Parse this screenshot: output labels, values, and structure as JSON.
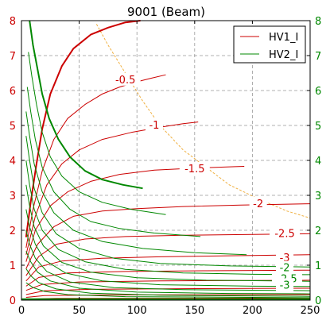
{
  "chart_data": {
    "type": "line",
    "title": "9001 (Beam)",
    "xlabel": "",
    "ylabel_left": "",
    "ylabel_right": "",
    "left_axis_color": "#cc0000",
    "right_axis_color": "#008800",
    "xlim": [
      0,
      250
    ],
    "ylim": [
      0,
      8
    ],
    "grid": true,
    "legend_position": "top-right",
    "xticks": [
      0,
      50,
      100,
      150,
      200,
      250
    ],
    "yticks": [
      0,
      1,
      2,
      3,
      4,
      5,
      6,
      7,
      8
    ],
    "legend": [
      {
        "label": "HV1_I",
        "color": "#cc0000"
      },
      {
        "label": "HV2_I",
        "color": "#008800"
      }
    ],
    "threshold_curve": {
      "color": "#f0b040",
      "points": [
        [
          65,
          7.9
        ],
        [
          75,
          7.3
        ],
        [
          90,
          6.5
        ],
        [
          105,
          5.7
        ],
        [
          120,
          5.0
        ],
        [
          140,
          4.3
        ],
        [
          160,
          3.8
        ],
        [
          180,
          3.3
        ],
        [
          205,
          2.9
        ],
        [
          230,
          2.55
        ],
        [
          250,
          2.35
        ]
      ]
    },
    "series": [
      {
        "group": "HV1_I",
        "color": "#cc0000",
        "width": 2.0,
        "points": [
          [
            4,
            1.8
          ],
          [
            8,
            2.8
          ],
          [
            13,
            3.9
          ],
          [
            18,
            4.9
          ],
          [
            25,
            5.9
          ],
          [
            35,
            6.7
          ],
          [
            45,
            7.2
          ],
          [
            60,
            7.6
          ],
          [
            75,
            7.8
          ],
          [
            90,
            7.95
          ],
          [
            103,
            8.0
          ]
        ]
      },
      {
        "group": "HV1_I",
        "color": "#cc0000",
        "width": 1.0,
        "points": [
          [
            4,
            1.5
          ],
          [
            10,
            2.6
          ],
          [
            18,
            3.7
          ],
          [
            28,
            4.6
          ],
          [
            40,
            5.2
          ],
          [
            55,
            5.6
          ],
          [
            70,
            5.9
          ],
          [
            85,
            6.1
          ],
          [
            100,
            6.25
          ],
          [
            112,
            6.35
          ],
          [
            125,
            6.45
          ]
        ]
      },
      {
        "group": "HV1_I",
        "color": "#cc0000",
        "width": 1.0,
        "points": [
          [
            4,
            1.3
          ],
          [
            12,
            2.4
          ],
          [
            22,
            3.3
          ],
          [
            35,
            3.9
          ],
          [
            50,
            4.3
          ],
          [
            70,
            4.6
          ],
          [
            95,
            4.8
          ],
          [
            120,
            4.95
          ],
          [
            140,
            5.05
          ],
          [
            153,
            5.1
          ]
        ]
      },
      {
        "group": "HV1_I",
        "color": "#cc0000",
        "width": 1.0,
        "points": [
          [
            4,
            1.1
          ],
          [
            12,
            2.0
          ],
          [
            25,
            2.7
          ],
          [
            40,
            3.1
          ],
          [
            60,
            3.4
          ],
          [
            85,
            3.6
          ],
          [
            115,
            3.72
          ],
          [
            150,
            3.78
          ],
          [
            185,
            3.82
          ],
          [
            193,
            3.83
          ]
        ]
      },
      {
        "group": "HV1_I",
        "color": "#cc0000",
        "width": 1.0,
        "points": [
          [
            4,
            0.9
          ],
          [
            14,
            1.6
          ],
          [
            28,
            2.1
          ],
          [
            45,
            2.4
          ],
          [
            70,
            2.55
          ],
          [
            100,
            2.62
          ],
          [
            140,
            2.68
          ],
          [
            190,
            2.72
          ],
          [
            250,
            2.76
          ]
        ]
      },
      {
        "group": "HV1_I",
        "color": "#cc0000",
        "width": 1.0,
        "points": [
          [
            4,
            0.7
          ],
          [
            15,
            1.25
          ],
          [
            30,
            1.6
          ],
          [
            55,
            1.75
          ],
          [
            90,
            1.82
          ],
          [
            140,
            1.86
          ],
          [
            200,
            1.88
          ],
          [
            250,
            1.9
          ]
        ]
      },
      {
        "group": "HV1_I",
        "color": "#cc0000",
        "width": 1.0,
        "points": [
          [
            4,
            0.55
          ],
          [
            15,
            0.95
          ],
          [
            35,
            1.12
          ],
          [
            70,
            1.2
          ],
          [
            120,
            1.24
          ],
          [
            180,
            1.27
          ],
          [
            250,
            1.3
          ]
        ]
      },
      {
        "group": "HV1_I",
        "color": "#cc0000",
        "width": 1.0,
        "points": [
          [
            4,
            0.4
          ],
          [
            15,
            0.65
          ],
          [
            40,
            0.78
          ],
          [
            90,
            0.82
          ],
          [
            160,
            0.84
          ],
          [
            250,
            0.86
          ]
        ]
      },
      {
        "group": "HV1_I",
        "color": "#cc0000",
        "width": 1.0,
        "points": [
          [
            4,
            0.28
          ],
          [
            18,
            0.45
          ],
          [
            50,
            0.52
          ],
          [
            120,
            0.55
          ],
          [
            250,
            0.57
          ]
        ]
      },
      {
        "group": "HV1_I",
        "color": "#cc0000",
        "width": 1.0,
        "points": [
          [
            4,
            0.16
          ],
          [
            20,
            0.27
          ],
          [
            60,
            0.31
          ],
          [
            150,
            0.33
          ],
          [
            250,
            0.34
          ]
        ]
      },
      {
        "group": "HV1_I",
        "color": "#cc0000",
        "width": 1.0,
        "points": [
          [
            4,
            0.08
          ],
          [
            20,
            0.13
          ],
          [
            80,
            0.15
          ],
          [
            250,
            0.16
          ]
        ]
      },
      {
        "group": "HV1_I",
        "color": "#cc0000",
        "width": 1.0,
        "points": [
          [
            4,
            0.03
          ],
          [
            30,
            0.05
          ],
          [
            250,
            0.06
          ]
        ]
      },
      {
        "group": "HV2_I",
        "color": "#008800",
        "width": 2.0,
        "points": [
          [
            7,
            8.0
          ],
          [
            10,
            7.3
          ],
          [
            14,
            6.6
          ],
          [
            18,
            5.9
          ],
          [
            24,
            5.2
          ],
          [
            32,
            4.6
          ],
          [
            42,
            4.1
          ],
          [
            55,
            3.7
          ],
          [
            70,
            3.45
          ],
          [
            88,
            3.3
          ],
          [
            105,
            3.2
          ]
        ]
      },
      {
        "group": "HV2_I",
        "color": "#008800",
        "width": 1.0,
        "points": [
          [
            6,
            7.1
          ],
          [
            9,
            6.4
          ],
          [
            13,
            5.6
          ],
          [
            18,
            4.8
          ],
          [
            25,
            4.1
          ],
          [
            35,
            3.55
          ],
          [
            50,
            3.1
          ],
          [
            70,
            2.8
          ],
          [
            95,
            2.6
          ],
          [
            125,
            2.45
          ]
        ]
      },
      {
        "group": "HV2_I",
        "color": "#008800",
        "width": 1.0,
        "points": [
          [
            5,
            6.1
          ],
          [
            8,
            5.4
          ],
          [
            12,
            4.6
          ],
          [
            18,
            3.8
          ],
          [
            28,
            3.1
          ],
          [
            42,
            2.6
          ],
          [
            60,
            2.25
          ],
          [
            85,
            2.05
          ],
          [
            115,
            1.92
          ],
          [
            155,
            1.82
          ]
        ]
      },
      {
        "group": "HV2_I",
        "color": "#008800",
        "width": 1.0,
        "points": [
          [
            4,
            5.4
          ],
          [
            7,
            4.7
          ],
          [
            11,
            3.9
          ],
          [
            18,
            3.1
          ],
          [
            28,
            2.5
          ],
          [
            45,
            2.0
          ],
          [
            70,
            1.68
          ],
          [
            105,
            1.48
          ],
          [
            150,
            1.36
          ],
          [
            195,
            1.3
          ]
        ]
      },
      {
        "group": "HV2_I",
        "color": "#008800",
        "width": 1.0,
        "points": [
          [
            4,
            4.7
          ],
          [
            7,
            4.0
          ],
          [
            11,
            3.2
          ],
          [
            18,
            2.5
          ],
          [
            30,
            1.9
          ],
          [
            50,
            1.48
          ],
          [
            80,
            1.2
          ],
          [
            120,
            1.05
          ],
          [
            180,
            0.98
          ],
          [
            250,
            0.95
          ]
        ]
      },
      {
        "group": "HV2_I",
        "color": "#008800",
        "width": 1.0,
        "points": [
          [
            4,
            4.0
          ],
          [
            7,
            3.3
          ],
          [
            11,
            2.6
          ],
          [
            18,
            2.0
          ],
          [
            32,
            1.45
          ],
          [
            55,
            1.1
          ],
          [
            90,
            0.88
          ],
          [
            140,
            0.78
          ],
          [
            200,
            0.74
          ],
          [
            250,
            0.73
          ]
        ]
      },
      {
        "group": "HV2_I",
        "color": "#008800",
        "width": 1.0,
        "points": [
          [
            4,
            3.3
          ],
          [
            7,
            2.7
          ],
          [
            11,
            2.1
          ],
          [
            19,
            1.55
          ],
          [
            35,
            1.08
          ],
          [
            60,
            0.8
          ],
          [
            100,
            0.64
          ],
          [
            160,
            0.57
          ],
          [
            250,
            0.54
          ]
        ]
      },
      {
        "group": "HV2_I",
        "color": "#008800",
        "width": 1.0,
        "points": [
          [
            4,
            2.6
          ],
          [
            7,
            2.1
          ],
          [
            12,
            1.6
          ],
          [
            20,
            1.15
          ],
          [
            38,
            0.78
          ],
          [
            70,
            0.55
          ],
          [
            120,
            0.44
          ],
          [
            200,
            0.4
          ],
          [
            250,
            0.39
          ]
        ]
      },
      {
        "group": "HV2_I",
        "color": "#008800",
        "width": 1.0,
        "points": [
          [
            4,
            2.0
          ],
          [
            7,
            1.6
          ],
          [
            12,
            1.2
          ],
          [
            22,
            0.82
          ],
          [
            42,
            0.52
          ],
          [
            80,
            0.36
          ],
          [
            140,
            0.3
          ],
          [
            250,
            0.27
          ]
        ]
      },
      {
        "group": "HV2_I",
        "color": "#008800",
        "width": 1.0,
        "points": [
          [
            4,
            1.4
          ],
          [
            8,
            1.1
          ],
          [
            14,
            0.8
          ],
          [
            25,
            0.55
          ],
          [
            50,
            0.34
          ],
          [
            100,
            0.23
          ],
          [
            180,
            0.19
          ],
          [
            250,
            0.18
          ]
        ]
      },
      {
        "group": "HV2_I",
        "color": "#008800",
        "width": 1.0,
        "points": [
          [
            4,
            0.9
          ],
          [
            8,
            0.7
          ],
          [
            15,
            0.5
          ],
          [
            30,
            0.32
          ],
          [
            60,
            0.2
          ],
          [
            120,
            0.14
          ],
          [
            250,
            0.11
          ]
        ]
      },
      {
        "group": "HV2_I",
        "color": "#008800",
        "width": 1.0,
        "points": [
          [
            4,
            0.5
          ],
          [
            10,
            0.36
          ],
          [
            20,
            0.25
          ],
          [
            40,
            0.16
          ],
          [
            90,
            0.1
          ],
          [
            250,
            0.07
          ]
        ]
      },
      {
        "group": "HV2_I",
        "color": "#008800",
        "width": 2.0,
        "points": [
          [
            0,
            0.03
          ],
          [
            50,
            0.03
          ],
          [
            250,
            0.03
          ]
        ]
      }
    ],
    "annotations": [
      {
        "text": "-0.5",
        "x": 90,
        "y": 6.3,
        "color": "#cc0000"
      },
      {
        "text": "-1",
        "x": 115,
        "y": 5.0,
        "color": "#cc0000"
      },
      {
        "text": "-1.5",
        "x": 150,
        "y": 3.75,
        "color": "#cc0000"
      },
      {
        "text": "-2",
        "x": 205,
        "y": 2.75,
        "color": "#cc0000"
      },
      {
        "text": "-2.5",
        "x": 228,
        "y": 1.9,
        "color": "#cc0000"
      },
      {
        "text": "-3",
        "x": 228,
        "y": 1.2,
        "color": "#cc0000"
      },
      {
        "text": "-2",
        "x": 228,
        "y": 0.92,
        "color": "#008800"
      },
      {
        "text": "-2.5",
        "x": 230,
        "y": 0.6,
        "color": "#008800"
      },
      {
        "text": "-3",
        "x": 228,
        "y": 0.42,
        "color": "#008800"
      }
    ]
  }
}
